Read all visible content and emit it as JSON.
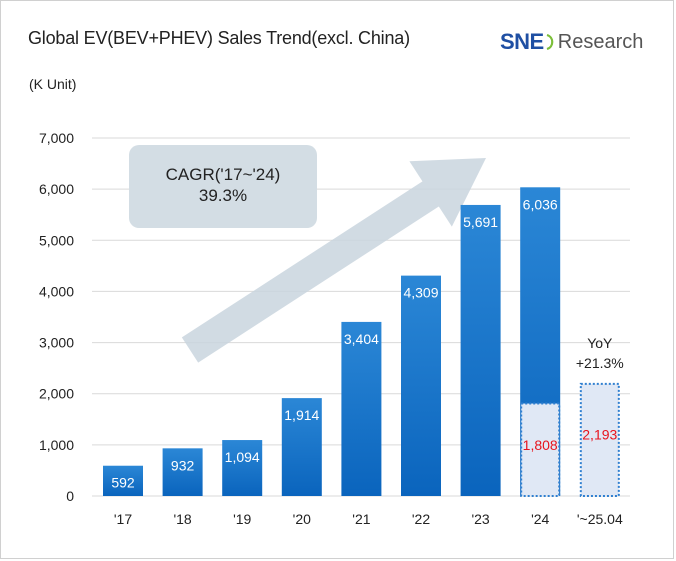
{
  "header": {
    "title": "Global EV(BEV+PHEV) Sales Trend(excl. China)",
    "unit": "(K Unit)"
  },
  "logo": {
    "brand": "SNE",
    "suffix": "Research",
    "brand_color": "#1f4fa3"
  },
  "annotation": {
    "cagr_label": "CAGR('17~'24)",
    "cagr_value": "39.3%",
    "yoy_label": "YoY",
    "yoy_value": "+21.3%"
  },
  "colors": {
    "bar_top": "#2b87d6",
    "bar_bottom": "#0a64bd",
    "partial_fill": "#e0e8f5",
    "partial_border": "#2f7fd0",
    "partial_text": "#e8141e",
    "bar_text": "#ffffff",
    "arrow": "#c9d5de"
  },
  "chart_data": {
    "type": "bar",
    "categories": [
      "'17",
      "'18",
      "'19",
      "'20",
      "'21",
      "'22",
      "'23",
      "'24",
      "'~25.04"
    ],
    "values": [
      592,
      932,
      1094,
      1914,
      3404,
      4309,
      5691,
      6036,
      null
    ],
    "partial_period_values": [
      null,
      null,
      null,
      null,
      null,
      null,
      null,
      1808,
      2193
    ],
    "value_labels": [
      "592",
      "932",
      "1,094",
      "1,914",
      "3,404",
      "4,309",
      "5,691",
      "6,036",
      ""
    ],
    "partial_labels": [
      "",
      "",
      "",
      "",
      "",
      "",
      "",
      "1,808",
      "2,193"
    ],
    "ylim": [
      0,
      7000
    ],
    "yticks": [
      0,
      1000,
      2000,
      3000,
      4000,
      5000,
      6000,
      7000
    ],
    "ytick_labels": [
      "0",
      "1,000",
      "2,000",
      "3,000",
      "4,000",
      "5,000",
      "6,000",
      "7,000"
    ],
    "grid": true,
    "legend": "none"
  }
}
